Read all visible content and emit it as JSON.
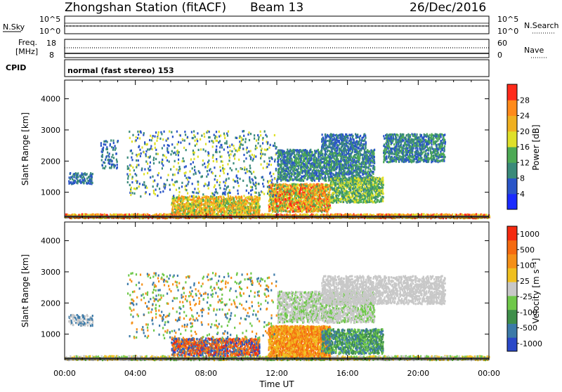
{
  "header": {
    "station": "Zhongshan Station (fitACF)",
    "beam": "Beam 13",
    "date": "26/Dec/2016"
  },
  "panel_noise": {
    "left_label": "N.Sky",
    "left_top": "10^5",
    "left_bottom": "10^0",
    "right_label": "N.Search",
    "right_top": "10^5",
    "right_bottom": "10^0"
  },
  "panel_freq": {
    "left_label_1": "Freq.",
    "left_label_2": "[MHz]",
    "left_top": "18",
    "left_bottom": "8",
    "right_label": "Nave",
    "right_top": "60",
    "right_bottom": "0",
    "cpid_label": "CPID",
    "cpid_text": "normal (fast stereo) 153"
  },
  "chart_data": [
    {
      "type": "heatmap",
      "title": "",
      "xlabel": "Time UT",
      "ylabel": "Slant Range [km]",
      "x_ticks": [
        "00:00",
        "04:00",
        "08:00",
        "12:00",
        "16:00",
        "20:00",
        "00:00"
      ],
      "xlim_hours": [
        0,
        24
      ],
      "y_ticks": [
        1000,
        2000,
        3000,
        4000
      ],
      "ylim": [
        180,
        4600
      ],
      "colorbar": {
        "label": "Power [dB]",
        "ticks": [
          "4",
          "8",
          "12",
          "16",
          "20",
          "24",
          "28"
        ],
        "colors": [
          "#1a2bff",
          "#2a55c8",
          "#3a8a7a",
          "#4daa55",
          "#dfe02a",
          "#f0b020",
          "#ff8a1a",
          "#ff2a1a"
        ]
      }
    },
    {
      "type": "heatmap",
      "title": "",
      "xlabel": "Time UT",
      "ylabel": "Slant Range [km]",
      "x_ticks": [
        "00:00",
        "04:00",
        "08:00",
        "12:00",
        "16:00",
        "20:00",
        "00:00"
      ],
      "xlim_hours": [
        0,
        24
      ],
      "y_ticks": [
        1000,
        2000,
        3000,
        4000
      ],
      "ylim": [
        180,
        4600
      ],
      "colorbar": {
        "label": "Velocity [m s⁻¹]",
        "ticks": [
          "1000",
          "500",
          "100",
          "25",
          "-25",
          "-100",
          "-500",
          "-1000"
        ],
        "colors": [
          "#2a48c8",
          "#3c7aa8",
          "#3f8f4a",
          "#6fc84a",
          "#c8c8c8",
          "#f0c020",
          "#f59018",
          "#f56a10",
          "#f52a10"
        ]
      }
    }
  ]
}
